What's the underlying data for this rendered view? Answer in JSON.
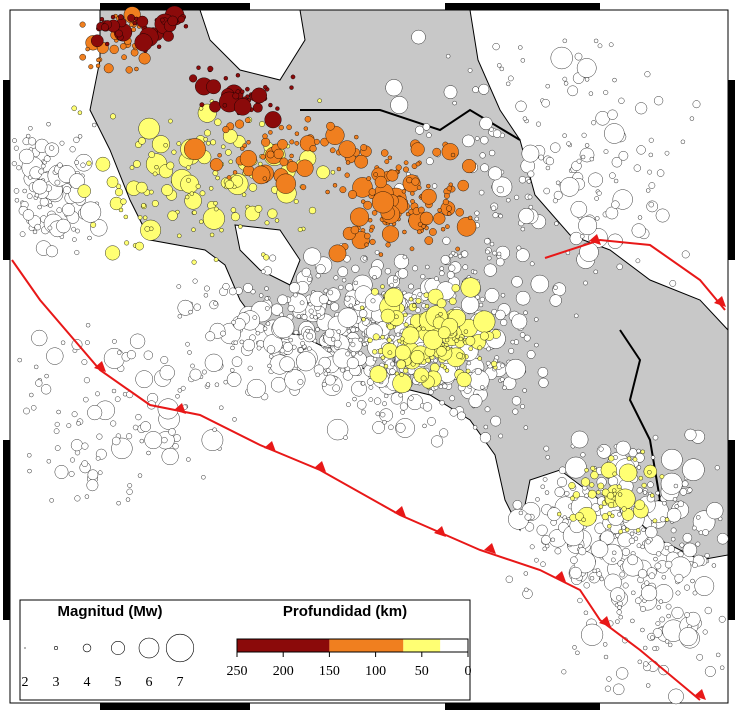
{
  "legend": {
    "magnitude": {
      "title": "Magnitud (Mw)",
      "labels": [
        2,
        3,
        4,
        5,
        6,
        7
      ]
    },
    "depth": {
      "title": "Profundidad (km)",
      "ticks": [
        250,
        200,
        150,
        100,
        50,
        0
      ],
      "breaks": [
        250,
        150,
        70,
        30,
        0
      ],
      "colors": [
        "#8b0a0a",
        "#f07f1f",
        "#ffff73",
        "#ffffff"
      ]
    }
  }
}
